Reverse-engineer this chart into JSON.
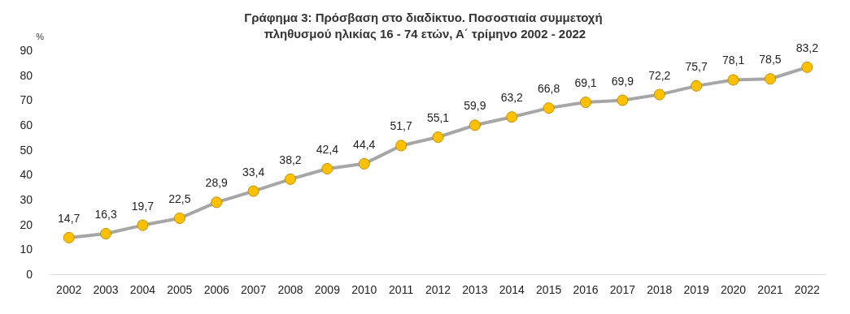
{
  "chart_data": {
    "type": "line",
    "title": "Γράφημα 3: Πρόσβαση στο διαδίκτυο. Ποσοστιαία συμμετοχή πληθυσμού ηλικίας 16 - 74 ετών, Α΄ τρίμηνο 2002 - 2022",
    "ylabel": "%",
    "categories": [
      "2002",
      "2003",
      "2004",
      "2005",
      "2006",
      "2007",
      "2008",
      "2009",
      "2010",
      "2011",
      "2012",
      "2013",
      "2014",
      "2015",
      "2016",
      "2017",
      "2018",
      "2019",
      "2020",
      "2021",
      "2022"
    ],
    "series": [
      {
        "color": "#a6a6a6",
        "values": [
          14.7,
          16.3,
          19.7,
          22.5,
          28.9,
          33.4,
          38.2,
          42.4,
          44.4,
          51.7,
          55.1,
          59.9,
          63.2,
          66.8,
          69.1,
          69.9,
          72.2,
          75.7,
          78.1,
          78.5,
          83.2
        ],
        "value_labels": [
          "14,7",
          "16,3",
          "19,7",
          "22,5",
          "28,9",
          "33,4",
          "38,2",
          "42,4",
          "44,4",
          "51,7",
          "55,1",
          "59,9",
          "63,2",
          "66,8",
          "69,1",
          "69,9",
          "72,2",
          "75,7",
          "78,1",
          "78,5",
          "83,2"
        ]
      }
    ],
    "ylim": [
      0,
      90
    ],
    "yticks": [
      0,
      10,
      20,
      30,
      40,
      50,
      60,
      70,
      80,
      90
    ],
    "grid": false,
    "marker": "circle",
    "line_style": "solid"
  }
}
